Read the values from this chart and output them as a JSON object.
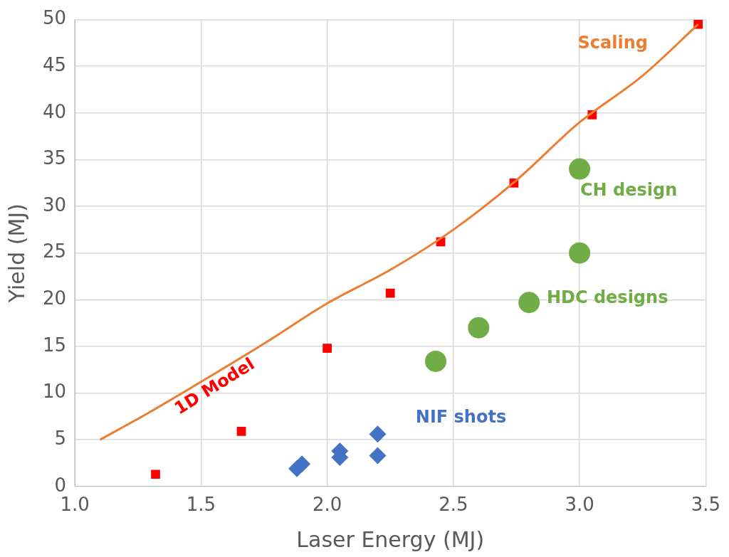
{
  "chart_data": {
    "type": "scatter",
    "xlabel": "Laser Energy (MJ)",
    "ylabel": "Yield (MJ)",
    "xlim": [
      1.0,
      3.5
    ],
    "xticks": [
      {
        "value": 1.0,
        "label": "1.0"
      },
      {
        "value": 1.5,
        "label": "1.5"
      },
      {
        "value": 2.0,
        "label": "2.0"
      },
      {
        "value": 2.5,
        "label": "2.5"
      },
      {
        "value": 3.0,
        "label": "3.0"
      },
      {
        "value": 3.5,
        "label": "3.5"
      }
    ],
    "ylim": [
      0,
      50
    ],
    "yticks": [
      0,
      5,
      10,
      15,
      20,
      25,
      30,
      35,
      40,
      45,
      50
    ],
    "grid": true,
    "legend": false,
    "series": [
      {
        "name": "Scaling",
        "type": "line",
        "marker": "none",
        "color": "#ed7d31",
        "x": [
          1.1,
          1.3,
          1.5,
          1.75,
          2.0,
          2.25,
          2.5,
          2.75,
          3.0,
          3.25,
          3.47
        ],
        "values": [
          5,
          8,
          11.2,
          15.3,
          19.6,
          23.2,
          27.5,
          32.8,
          39,
          44,
          49.5
        ]
      },
      {
        "name": "1D Model",
        "type": "scatter",
        "marker": "square",
        "color": "#ff0000",
        "x": [
          1.32,
          1.66,
          2.0,
          2.25,
          2.45,
          2.74,
          3.05,
          3.47
        ],
        "values": [
          1.3,
          5.9,
          14.8,
          20.7,
          26.2,
          32.5,
          39.8,
          49.5
        ]
      },
      {
        "name": "NIF shots",
        "type": "scatter",
        "marker": "diamond",
        "color": "#4472c4",
        "x": [
          1.88,
          1.9,
          2.05,
          2.05,
          2.2,
          2.2
        ],
        "values": [
          1.9,
          2.4,
          3.8,
          3.1,
          5.6,
          3.3
        ]
      },
      {
        "name": "HDC designs",
        "type": "scatter",
        "marker": "circle",
        "color": "#70ad47",
        "x": [
          2.43,
          2.6,
          2.8,
          3.0
        ],
        "values": [
          13.4,
          17.0,
          19.7,
          25.0
        ]
      },
      {
        "name": "CH design",
        "type": "scatter",
        "marker": "circle",
        "color": "#70ad47",
        "x": [
          3.0
        ],
        "values": [
          34.0
        ]
      }
    ]
  }
}
